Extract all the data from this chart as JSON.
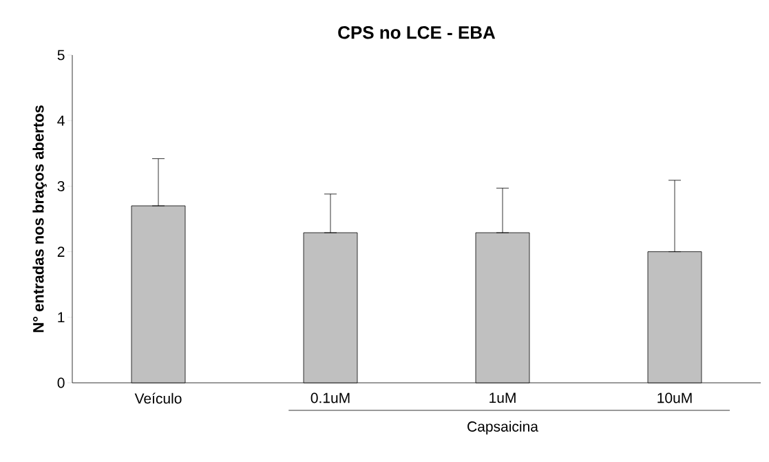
{
  "chart_data": {
    "type": "bar",
    "title": "CPS no LCE - EBA",
    "ylabel": "N° entradas nos braços abertos",
    "categories": [
      "Veículo",
      "0.1uM",
      "1uM",
      "10uM"
    ],
    "values": [
      2.7,
      2.29,
      2.29,
      2.0
    ],
    "errors": [
      [
        2.7,
        3.42
      ],
      [
        2.29,
        2.88
      ],
      [
        2.29,
        2.97
      ],
      [
        2.0,
        3.09
      ]
    ],
    "color": "#c0c0c0",
    "ylim": [
      0,
      5
    ],
    "yticks": [
      0,
      1,
      2,
      3,
      4,
      5
    ],
    "grid": false,
    "annotations": [
      "Capsaicina"
    ]
  }
}
